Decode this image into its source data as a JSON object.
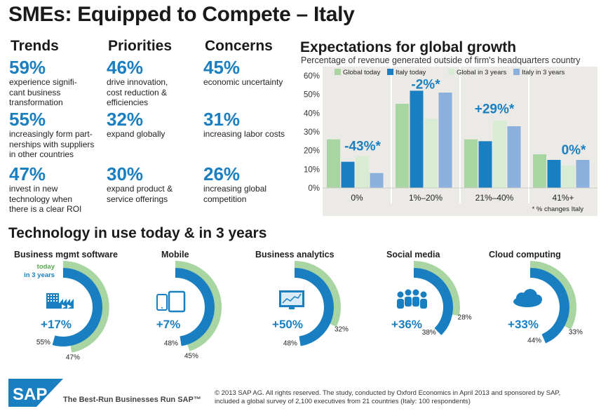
{
  "title": "SMEs: Equipped to Compete – Italy",
  "columns": [
    {
      "heading": "Trends",
      "items": [
        {
          "pct": "59%",
          "text": [
            "experience signifi-",
            "cant business",
            "transformation"
          ]
        },
        {
          "pct": "55%",
          "text": [
            "increasingly form part-",
            "nerships with suppliers",
            "in other countries"
          ]
        },
        {
          "pct": "47%",
          "text": [
            "invest in new",
            "technology when",
            "there is a clear ROI"
          ]
        }
      ]
    },
    {
      "heading": "Priorities",
      "items": [
        {
          "pct": "46%",
          "text": [
            "drive innovation,",
            "cost reduction &",
            "efficiencies"
          ]
        },
        {
          "pct": "32%",
          "text": [
            "expand globally"
          ]
        },
        {
          "pct": "30%",
          "text": [
            "expand product &",
            "service offerings"
          ]
        }
      ]
    },
    {
      "heading": "Concerns",
      "items": [
        {
          "pct": "45%",
          "text": [
            "economic uncertainty"
          ]
        },
        {
          "pct": "31%",
          "text": [
            "increasing labor costs"
          ]
        },
        {
          "pct": "26%",
          "text": [
            "increasing global",
            "competition"
          ]
        }
      ]
    }
  ],
  "chart_data": {
    "type": "bar",
    "title": "Expectations for global growth",
    "subtitle": "Percentage of revenue generated outside of firm's headquarters country",
    "categories": [
      "0%",
      "1%–20%",
      "21%–40%",
      "41%+"
    ],
    "series": [
      {
        "name": "Global today",
        "color": "#a8d5a2",
        "values": [
          26,
          45,
          26,
          18
        ]
      },
      {
        "name": "Italy today",
        "color": "#1a7fc1",
        "values": [
          14,
          52,
          25,
          15
        ]
      },
      {
        "name": "Global in 3 years",
        "color": "#d7ecd2",
        "values": [
          17,
          37,
          36,
          12
        ]
      },
      {
        "name": "Italy in 3 years",
        "color": "#8bb0dc",
        "values": [
          8,
          51,
          33,
          15
        ]
      }
    ],
    "annotations": [
      "-43%*",
      "-2%*",
      "+29%*",
      "0%*"
    ],
    "ylim": [
      0,
      60
    ],
    "yticks": [
      "0%",
      "10%",
      "20%",
      "30%",
      "40%",
      "50%",
      "60%"
    ],
    "footnote": "* % changes Italy",
    "grid": false,
    "legend": "top"
  },
  "tech": {
    "title": "Technology in use today & in 3 years",
    "today_label": "today",
    "future_label": "in 3 years",
    "today_color": "#a8d5a2",
    "future_color": "#1a7fc1",
    "items": [
      {
        "label": "Business mgmt software",
        "icon": "factory-icon",
        "change": "+17%",
        "today": 47,
        "future": 55
      },
      {
        "label": "Mobile",
        "icon": "mobile-devices-icon",
        "change": "+7%",
        "today": 45,
        "future": 48
      },
      {
        "label": "Business analytics",
        "icon": "analytics-screen-icon",
        "change": "+50%",
        "today": 32,
        "future": 48
      },
      {
        "label": "Social media",
        "icon": "people-group-icon",
        "change": "+36%",
        "today": 28,
        "future": 38
      },
      {
        "label": "Cloud computing",
        "icon": "cloud-icon",
        "change": "+33%",
        "today": 33,
        "future": 44
      }
    ]
  },
  "footer": {
    "logo": "SAP",
    "tagline": "The Best-Run Businesses Run SAP™",
    "copyright": "©  2013 SAP AG. All rights reserved. The study, conducted by Oxford Economics in April 2013 and sponsored by SAP, included a global survey of 2,100 executives from 21 countries (Italy: 100 respondents)"
  }
}
